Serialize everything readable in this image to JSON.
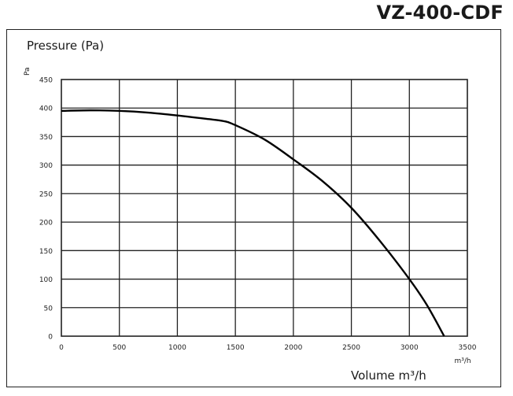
{
  "model": "VZ-400-CDF",
  "chart_data": {
    "type": "line",
    "title": "Pressure (Pa)",
    "ylabel": "Pa",
    "xlabel": "Volume m³/h",
    "x_unit": "m³/h",
    "xlim": [
      0,
      3500
    ],
    "ylim": [
      0,
      450
    ],
    "x_ticks": [
      0,
      500,
      1000,
      1500,
      2000,
      2500,
      3000,
      3500
    ],
    "y_ticks": [
      0,
      50,
      100,
      150,
      200,
      250,
      300,
      350,
      400,
      450
    ],
    "grid": true,
    "series": [
      {
        "x": [
          0,
          250,
          500,
          750,
          1000,
          1250,
          1400,
          1500,
          1750,
          2000,
          2250,
          2500,
          2750,
          3000,
          3150,
          3300
        ],
        "y": [
          395,
          396,
          395,
          392,
          387,
          381,
          377,
          370,
          345,
          310,
          272,
          225,
          166,
          100,
          55,
          0
        ]
      }
    ]
  }
}
